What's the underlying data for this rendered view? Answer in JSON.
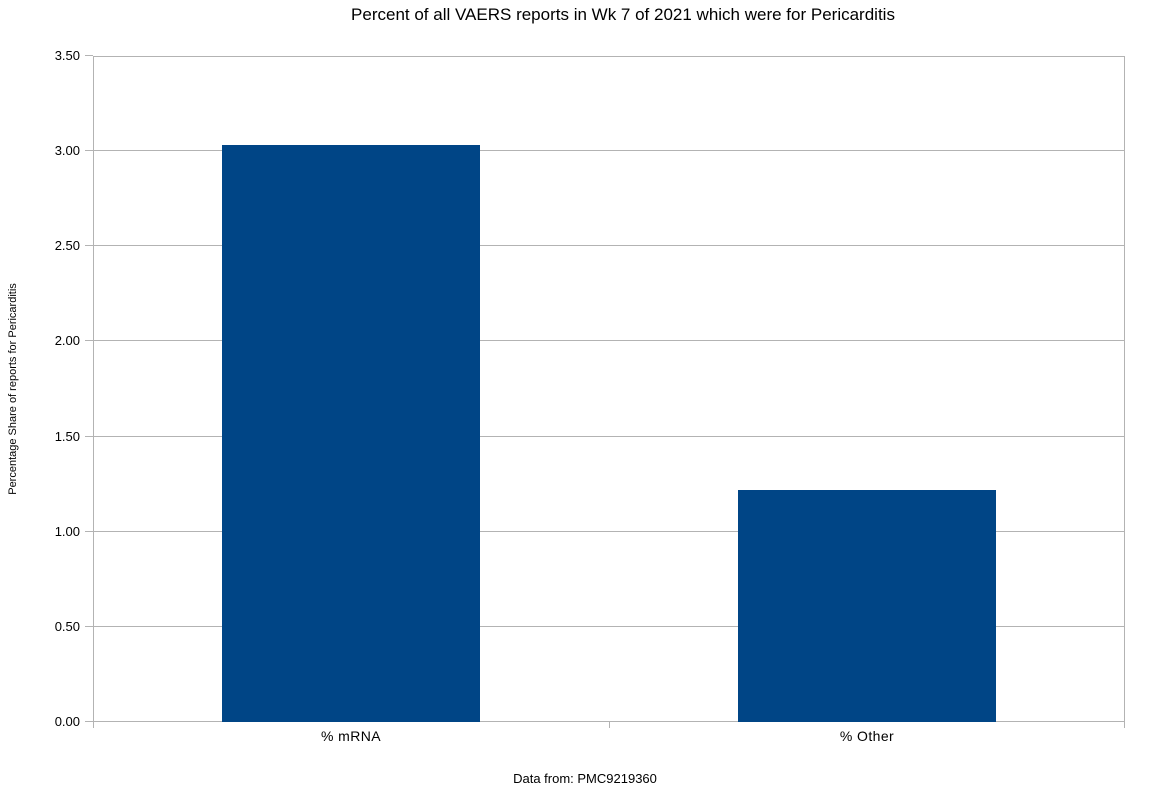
{
  "page": {
    "background": "#ffffff"
  },
  "chart_data": {
    "type": "bar",
    "title": "Percent of all VAERS reports in Wk 7 of 2021 which were for Pericarditis",
    "footer": "Data from: PMC9219360",
    "xlabel": "",
    "ylabel": "Percentage Share of reports for Pericarditis",
    "categories": [
      "% mRNA",
      "% Other"
    ],
    "values": [
      3.03,
      1.22
    ],
    "ylim": [
      0,
      3.5
    ],
    "ytick_step": 0.5,
    "ytick_labels": [
      "0.00",
      "0.50",
      "1.00",
      "1.50",
      "2.00",
      "2.50",
      "3.00",
      "3.50"
    ],
    "grid": true,
    "legend_position": "none",
    "colors": {
      "bar": "#004586",
      "grid": "#b3b3b3",
      "axis": "#b3b3b3",
      "text": "#000000",
      "background": "#ffffff"
    }
  }
}
